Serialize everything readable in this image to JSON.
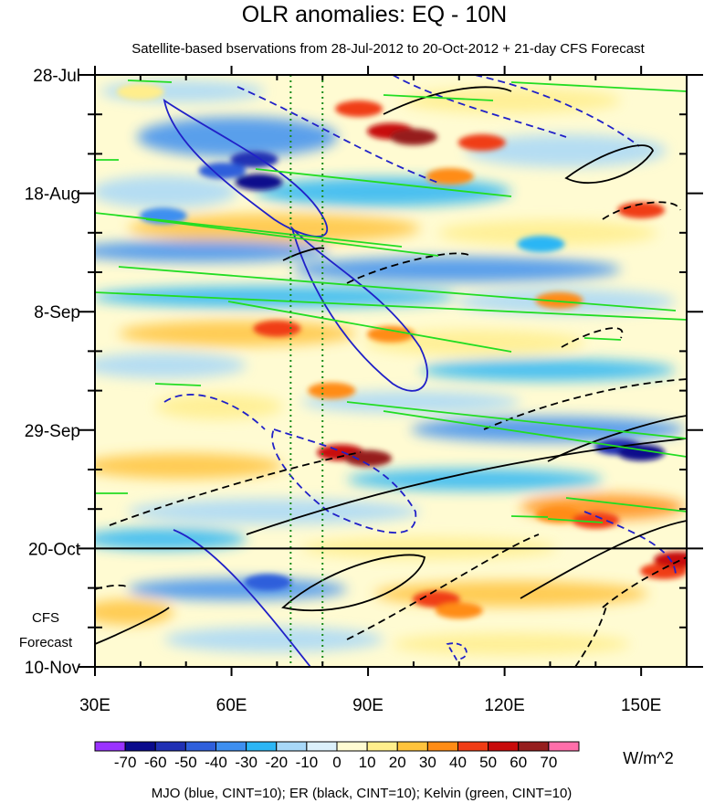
{
  "chart_data": {
    "type": "heatmap",
    "title": "OLR anomalies: EQ - 10N",
    "subtitle": "Satellite-based bservations from 28-Jul-2012 to 20-Oct-2012 + 21-day CFS Forecast",
    "x_ticks": [
      "30E",
      "60E",
      "90E",
      "120E",
      "150E"
    ],
    "x_tick_values": [
      30,
      60,
      90,
      120,
      150
    ],
    "xlim": [
      30,
      160
    ],
    "y_ticks": [
      "28-Jul",
      "18-Aug",
      "8-Sep",
      "29-Sep",
      "20-Oct",
      "10-Nov"
    ],
    "y_tick_days": [
      0,
      21,
      42,
      63,
      84,
      105
    ],
    "ylim_days": [
      0,
      105
    ],
    "forecast_label_1": "CFS",
    "forecast_label_2": "Forecast",
    "forecast_start_day": 84,
    "reference_lines_lon": [
      73,
      80
    ],
    "colorbar": {
      "labels": [
        "-70",
        "-60",
        "-50",
        "-40",
        "-30",
        "-20",
        "-10",
        "0",
        "10",
        "20",
        "30",
        "40",
        "50",
        "60",
        "70"
      ],
      "colors": [
        "#9a32ff",
        "#0a0a8c",
        "#2030b4",
        "#2f5fdb",
        "#3e8ff0",
        "#2cb6f5",
        "#a8d8f8",
        "#dcf0fb",
        "#fffbd2",
        "#ffee8c",
        "#ffc33c",
        "#ff8c14",
        "#f03c14",
        "#c80a0a",
        "#961e1e",
        "#ff6eaa"
      ],
      "units": "W/m^2"
    },
    "field_cells": [
      {
        "lon": 40,
        "day": 3,
        "v": 10
      },
      {
        "lon": 88,
        "day": 6,
        "v": 40
      },
      {
        "lon": 95,
        "day": 10,
        "v": 50
      },
      {
        "lon": 100,
        "day": 11,
        "v": 60
      },
      {
        "lon": 115,
        "day": 12,
        "v": 40
      },
      {
        "lon": 108,
        "day": 18,
        "v": 30
      },
      {
        "lon": 65,
        "day": 15,
        "v": -60
      },
      {
        "lon": 58,
        "day": 17,
        "v": -50
      },
      {
        "lon": 66,
        "day": 19,
        "v": -70
      },
      {
        "lon": 45,
        "day": 25,
        "v": -40
      },
      {
        "lon": 150,
        "day": 24,
        "v": 40
      },
      {
        "lon": 128,
        "day": 30,
        "v": -30
      },
      {
        "lon": 70,
        "day": 45,
        "v": 40
      },
      {
        "lon": 95,
        "day": 46,
        "v": 30
      },
      {
        "lon": 132,
        "day": 40,
        "v": 30
      },
      {
        "lon": 82,
        "day": 56,
        "v": 30
      },
      {
        "lon": 84,
        "day": 67,
        "v": 50
      },
      {
        "lon": 90,
        "day": 68,
        "v": 60
      },
      {
        "lon": 145,
        "day": 66,
        "v": -60
      },
      {
        "lon": 150,
        "day": 67,
        "v": -70
      },
      {
        "lon": 132,
        "day": 78,
        "v": 30
      },
      {
        "lon": 140,
        "day": 79,
        "v": 40
      },
      {
        "lon": 68,
        "day": 90,
        "v": -50
      },
      {
        "lon": 105,
        "day": 93,
        "v": 40
      },
      {
        "lon": 110,
        "day": 95,
        "v": 30
      },
      {
        "lon": 155,
        "day": 88,
        "v": 40
      },
      {
        "lon": 158,
        "day": 86,
        "v": 50
      }
    ],
    "contours": {
      "mjo": {
        "color": "#2020c8",
        "label": "MJO (blue, CINT=10)"
      },
      "er": {
        "color": "#000000",
        "label": "ER (black, CINT=10)"
      },
      "kelvin": {
        "color": "#22dd22",
        "label": "Kelvin (green, CINT=10)"
      }
    },
    "footer": "MJO (blue, CINT=10); ER (black, CINT=10); Kelvin (green, CINT=10)"
  }
}
